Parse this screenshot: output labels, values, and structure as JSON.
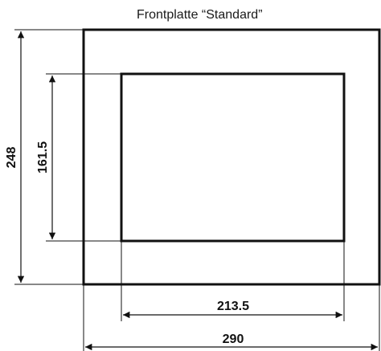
{
  "title": "Frontplatte “Standard”",
  "dimensions": {
    "outer_height": "248",
    "inner_height": "161.5",
    "inner_width": "213.5",
    "outer_width": "290"
  }
}
